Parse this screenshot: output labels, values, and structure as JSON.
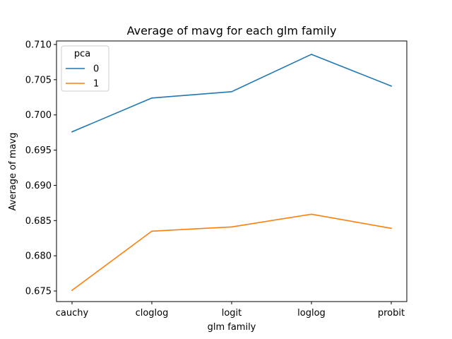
{
  "chart_data": {
    "type": "line",
    "title": "Average of mavg for each glm family",
    "xlabel": "glm family",
    "ylabel": "Average of mavg",
    "categories": [
      "cauchy",
      "cloglog",
      "logit",
      "loglog",
      "probit"
    ],
    "ylim": [
      0.6735,
      0.7105
    ],
    "yticks": [
      0.675,
      0.68,
      0.685,
      0.69,
      0.695,
      0.7,
      0.705,
      0.71
    ],
    "ytick_labels": [
      "0.675",
      "0.680",
      "0.685",
      "0.690",
      "0.695",
      "0.700",
      "0.705",
      "0.710"
    ],
    "grid": false,
    "legend": {
      "title": "pca",
      "position": "top-left"
    },
    "series": [
      {
        "name": "0",
        "color": "#1f77b4",
        "values": [
          0.6976,
          0.7024,
          0.7033,
          0.7086,
          0.7041
        ]
      },
      {
        "name": "1",
        "color": "#ff7f0e",
        "values": [
          0.6751,
          0.6835,
          0.6841,
          0.6859,
          0.6839
        ]
      }
    ]
  }
}
